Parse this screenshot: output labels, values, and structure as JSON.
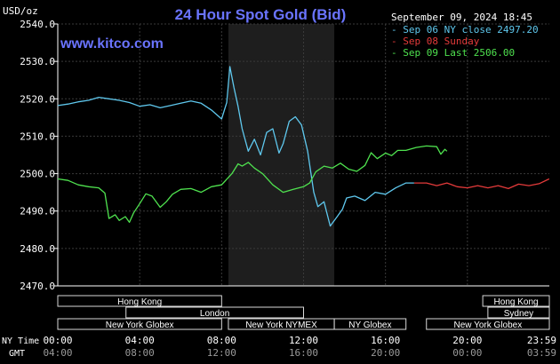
{
  "header": {
    "title": "24 Hour Spot Gold (Bid)",
    "unit_label": "USD/oz",
    "timestamp": "September 09, 2024 18:45",
    "website": "www.kitco.com"
  },
  "legend": [
    {
      "text": "Sep 06 NY close 2497.20",
      "color": "#5fc8ee"
    },
    {
      "text": "Sep 08 Sunday",
      "color": "#e43a3a"
    },
    {
      "text": "Sep 09 Last 2506.00",
      "color": "#4fe24f"
    }
  ],
  "markets": {
    "row1": [
      {
        "label": "Hong Kong",
        "from": 0.0,
        "to": 8.0
      },
      {
        "label": "Hong Kong",
        "from": 20.75,
        "to": 24.0
      }
    ],
    "row2": [
      {
        "label": "London",
        "from": 3.33,
        "to": 12.0
      },
      {
        "label": "Sydney",
        "from": 21.0,
        "to": 24.0
      }
    ],
    "row3": [
      {
        "label": "New York Globex",
        "from": 0.0,
        "to": 8.0
      },
      {
        "label": "New York NYMEX",
        "from": 8.33,
        "to": 13.5
      },
      {
        "label": "NY Globex",
        "from": 13.5,
        "to": 17.0
      },
      {
        "label": "New York Globex",
        "from": 18.0,
        "to": 24.0
      }
    ]
  },
  "time_axis": {
    "ny_label": "NY Time",
    "gmt_label": "GMT",
    "ny_ticks": [
      "00:00",
      "04:00",
      "08:00",
      "12:00",
      "16:00",
      "20:00",
      "23:59"
    ],
    "gmt_ticks": [
      "04:00",
      "08:00",
      "12:00",
      "16:00",
      "20:00",
      "00:00",
      "03:59"
    ]
  },
  "chart_data": {
    "type": "line",
    "title": "24 Hour Spot Gold (Bid)",
    "ylabel": "USD/oz",
    "xlabel": "NY Time / GMT",
    "x_units": "hours (NY time)",
    "xlim": [
      0,
      24
    ],
    "ylim": [
      2470,
      2540
    ],
    "y_ticks": [
      "2470.0",
      "2480.0",
      "2490.0",
      "2500.0",
      "2510.0",
      "2520.0",
      "2530.0",
      "2540.0"
    ],
    "grid": true,
    "legend_position": "top-right",
    "shaded_region_hours": [
      8.33,
      13.5
    ],
    "series": [
      {
        "name": "Sep 06 NY close 2497.20",
        "color": "#5fc8ee",
        "points": [
          [
            0,
            2518.2
          ],
          [
            0.5,
            2518.6
          ],
          [
            1,
            2519.2
          ],
          [
            1.5,
            2519.6
          ],
          [
            2,
            2520.4
          ],
          [
            2.5,
            2520.0
          ],
          [
            3,
            2519.6
          ],
          [
            3.5,
            2519.0
          ],
          [
            4,
            2518.0
          ],
          [
            4.5,
            2518.4
          ],
          [
            5,
            2517.6
          ],
          [
            5.5,
            2518.2
          ],
          [
            6,
            2518.8
          ],
          [
            6.5,
            2519.4
          ],
          [
            7,
            2518.8
          ],
          [
            7.5,
            2517.0
          ],
          [
            8,
            2514.6
          ],
          [
            8.25,
            2519.0
          ],
          [
            8.4,
            2528.6
          ],
          [
            8.6,
            2523.0
          ],
          [
            8.8,
            2518.0
          ],
          [
            9,
            2512.0
          ],
          [
            9.3,
            2506.0
          ],
          [
            9.6,
            2509.2
          ],
          [
            9.9,
            2505.0
          ],
          [
            10.2,
            2511.0
          ],
          [
            10.5,
            2512.0
          ],
          [
            10.8,
            2505.5
          ],
          [
            11.0,
            2508.0
          ],
          [
            11.3,
            2514.0
          ],
          [
            11.6,
            2515.2
          ],
          [
            11.9,
            2513.0
          ],
          [
            12.2,
            2506.0
          ],
          [
            12.5,
            2495.0
          ],
          [
            12.7,
            2491.2
          ],
          [
            13.0,
            2492.5
          ],
          [
            13.3,
            2486.0
          ],
          [
            13.6,
            2488.2
          ],
          [
            13.9,
            2490.5
          ],
          [
            14.1,
            2493.5
          ],
          [
            14.5,
            2494.0
          ],
          [
            15.0,
            2492.8
          ],
          [
            15.5,
            2495.0
          ],
          [
            16.0,
            2494.5
          ],
          [
            16.5,
            2496.2
          ],
          [
            17.0,
            2497.5
          ],
          [
            17.4,
            2497.5
          ]
        ]
      },
      {
        "name": "Sep 08 Sunday",
        "color": "#e43a3a",
        "points": [
          [
            17.4,
            2497.5
          ],
          [
            18.0,
            2497.5
          ],
          [
            18.5,
            2496.8
          ],
          [
            19.0,
            2497.5
          ],
          [
            19.5,
            2496.5
          ],
          [
            20.0,
            2496.2
          ],
          [
            20.5,
            2496.8
          ],
          [
            21.0,
            2496.2
          ],
          [
            21.5,
            2496.8
          ],
          [
            22.0,
            2496.0
          ],
          [
            22.5,
            2497.2
          ],
          [
            23.0,
            2496.8
          ],
          [
            23.5,
            2497.3
          ],
          [
            23.99,
            2498.6
          ]
        ]
      },
      {
        "name": "Sep 09 Last 2506.00",
        "color": "#4fe24f",
        "points": [
          [
            0,
            2498.6
          ],
          [
            0.5,
            2498.2
          ],
          [
            1,
            2497.0
          ],
          [
            1.5,
            2496.5
          ],
          [
            2,
            2496.2
          ],
          [
            2.3,
            2494.8
          ],
          [
            2.5,
            2488.0
          ],
          [
            2.8,
            2489.0
          ],
          [
            3.0,
            2487.5
          ],
          [
            3.3,
            2488.5
          ],
          [
            3.5,
            2487.0
          ],
          [
            3.7,
            2489.5
          ],
          [
            4.0,
            2492.0
          ],
          [
            4.3,
            2494.6
          ],
          [
            4.6,
            2494.0
          ],
          [
            5.0,
            2491.0
          ],
          [
            5.3,
            2492.5
          ],
          [
            5.6,
            2494.5
          ],
          [
            6.0,
            2495.8
          ],
          [
            6.5,
            2496.0
          ],
          [
            7.0,
            2495.0
          ],
          [
            7.5,
            2496.5
          ],
          [
            8.0,
            2497.0
          ],
          [
            8.5,
            2500.0
          ],
          [
            8.8,
            2502.6
          ],
          [
            9.0,
            2502.0
          ],
          [
            9.3,
            2503.0
          ],
          [
            9.6,
            2501.5
          ],
          [
            10.0,
            2500.0
          ],
          [
            10.5,
            2497.0
          ],
          [
            11.0,
            2495.0
          ],
          [
            11.5,
            2495.8
          ],
          [
            12.0,
            2496.5
          ],
          [
            12.3,
            2497.5
          ],
          [
            12.6,
            2500.5
          ],
          [
            13.0,
            2502.0
          ],
          [
            13.4,
            2501.5
          ],
          [
            13.8,
            2502.8
          ],
          [
            14.2,
            2501.2
          ],
          [
            14.6,
            2500.6
          ],
          [
            15.0,
            2502.2
          ],
          [
            15.3,
            2505.6
          ],
          [
            15.6,
            2504.0
          ],
          [
            16.0,
            2505.5
          ],
          [
            16.3,
            2504.8
          ],
          [
            16.6,
            2506.2
          ],
          [
            17.0,
            2506.2
          ],
          [
            17.5,
            2507.0
          ],
          [
            18.0,
            2507.4
          ],
          [
            18.5,
            2507.2
          ],
          [
            18.7,
            2505.2
          ],
          [
            18.9,
            2506.5
          ],
          [
            19.0,
            2506.0
          ]
        ]
      }
    ]
  }
}
